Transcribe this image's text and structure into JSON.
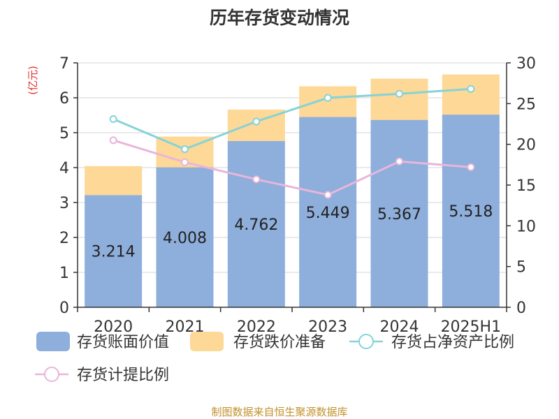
{
  "title": "历年存货变动情况",
  "source": "制图数据来自恒生聚源数据库",
  "chart_data": {
    "type": "bar",
    "categories": [
      "2020",
      "2021",
      "2022",
      "2023",
      "2024",
      "2025H1"
    ],
    "y_left_label": "(亿元)",
    "y_left_ticks": [
      "0",
      "1",
      "2",
      "3",
      "4",
      "5",
      "6",
      "7"
    ],
    "y_right_ticks": [
      "0",
      "5",
      "10",
      "15",
      "20",
      "25",
      "30"
    ],
    "ylim_left": [
      0,
      7
    ],
    "ylim_right": [
      0,
      30
    ],
    "bars": [
      {
        "name": "存货账面价值",
        "color": "#8eaedb",
        "values": [
          3.214,
          4.008,
          4.762,
          5.449,
          5.367,
          5.518
        ],
        "labels": [
          "3.214",
          "4.008",
          "4.762",
          "5.449",
          "5.367",
          "5.518"
        ]
      },
      {
        "name": "存货跌价准备",
        "color": "#fdd896",
        "values": [
          0.83,
          0.88,
          0.9,
          0.88,
          1.18,
          1.15
        ]
      }
    ],
    "lines": [
      {
        "name": "存货占净资产比例",
        "color": "#86d3d8",
        "values": [
          23.1,
          19.4,
          22.8,
          25.7,
          26.2,
          26.8
        ]
      },
      {
        "name": "存货计提比例",
        "color": "#e8b6db",
        "values": [
          20.5,
          17.8,
          15.7,
          13.8,
          17.9,
          17.2
        ]
      }
    ],
    "legend_position": "bottom"
  }
}
